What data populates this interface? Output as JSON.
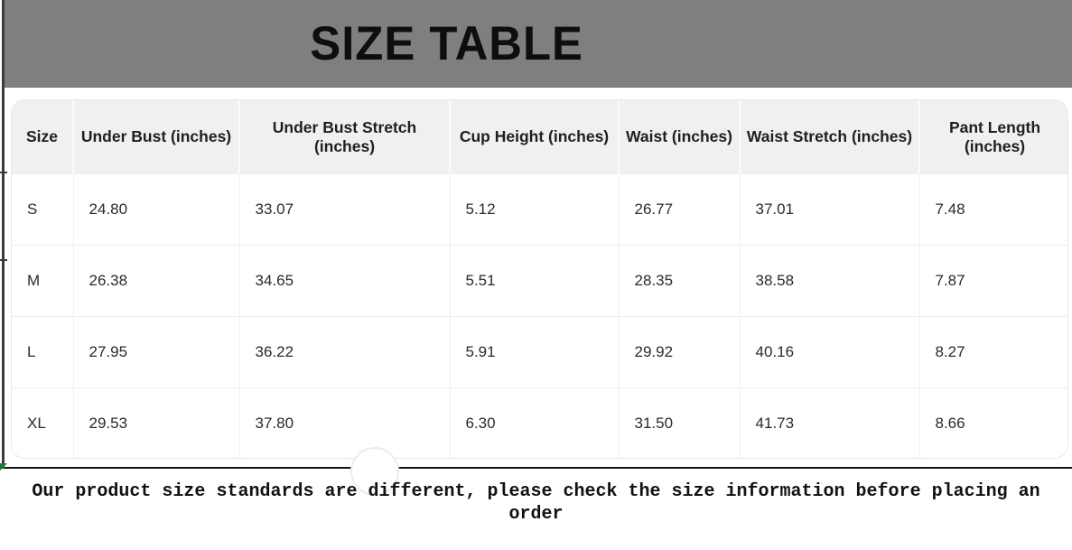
{
  "banner": {
    "title": "SIZE TABLE"
  },
  "table": {
    "headers": [
      "Size",
      "Under Bust (inches)",
      "Under Bust Stretch (inches)",
      "Cup Height (inches)",
      "Waist (inches)",
      "Waist Stretch (inches)",
      "Pant Length (inches)"
    ],
    "rows": [
      [
        "S",
        "24.80",
        "33.07",
        "5.12",
        "26.77",
        "37.01",
        "7.48"
      ],
      [
        "M",
        "26.38",
        "34.65",
        "5.51",
        "28.35",
        "38.58",
        "7.87"
      ],
      [
        "L",
        "27.95",
        "36.22",
        "5.91",
        "29.92",
        "40.16",
        "8.27"
      ],
      [
        "XL",
        "29.53",
        "37.80",
        "6.30",
        "31.50",
        "41.73",
        "8.66"
      ]
    ]
  },
  "footer": {
    "note": "Our product size standards are different, please check the size information before placing an order"
  },
  "colors": {
    "banner_gray": "#7f7f7f",
    "header_row_bg": "#f0f0ef",
    "divider_black": "#141414",
    "card_border": "#e8e8e8",
    "green_mark": "#1f7a2d"
  }
}
